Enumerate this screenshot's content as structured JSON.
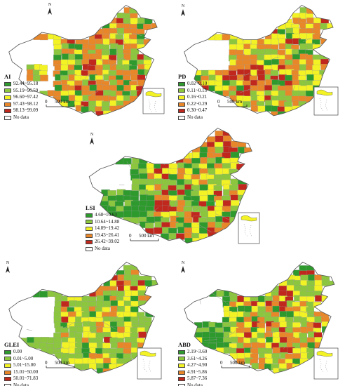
{
  "panels": [
    {
      "id": "AI",
      "title": "AI",
      "legend": [
        {
          "range": "92.44~95.18",
          "color": "#2e9a2e"
        },
        {
          "range": "95.19~96.59",
          "color": "#8cc63f"
        },
        {
          "range": "96.60~97.42",
          "color": "#f2f224"
        },
        {
          "range": "97.43~98.12",
          "color": "#e8872a"
        },
        {
          "range": "98.13~99.09",
          "color": "#c0281e"
        }
      ],
      "no_data_label": "No data",
      "scale": {
        "zero": "0",
        "label": "500 km"
      },
      "north": "N"
    },
    {
      "id": "PD",
      "title": "PD",
      "legend": [
        {
          "range": "0.02~0.10",
          "color": "#2e9a2e"
        },
        {
          "range": "0.11~0.15",
          "color": "#8cc63f"
        },
        {
          "range": "0.16~0.21",
          "color": "#f2f224"
        },
        {
          "range": "0.22~0.29",
          "color": "#e8872a"
        },
        {
          "range": "0.30~0.47",
          "color": "#c0281e"
        }
      ],
      "no_data_label": "No data",
      "scale": {
        "zero": "0",
        "label": "500 km"
      },
      "north": "N"
    },
    {
      "id": "LSI",
      "title": "LSI",
      "legend": [
        {
          "range": "4.68~10.63",
          "color": "#2e9a2e"
        },
        {
          "range": "10.64~14.88",
          "color": "#8cc63f"
        },
        {
          "range": "14.89~19.42",
          "color": "#f2f224"
        },
        {
          "range": "19.43~26.41",
          "color": "#e8872a"
        },
        {
          "range": "26.42~39.02",
          "color": "#c0281e"
        }
      ],
      "no_data_label": "No data",
      "scale": {
        "zero": "0",
        "label": "500 km"
      },
      "north": "N"
    },
    {
      "id": "GLEI",
      "title": "GLEI",
      "legend": [
        {
          "range": "0.00",
          "color": "#2e9a2e"
        },
        {
          "range": "0.01~5.00",
          "color": "#8cc63f"
        },
        {
          "range": "5.01~15.00",
          "color": "#f2f224"
        },
        {
          "range": "15.01~50.00",
          "color": "#e8872a"
        },
        {
          "range": "50.01~71.83",
          "color": "#c0281e"
        }
      ],
      "no_data_label": "No data",
      "scale": {
        "zero": "0",
        "label": "500 km"
      },
      "north": "N"
    },
    {
      "id": "ABD",
      "title": "ABD",
      "legend": [
        {
          "range": "2.19~3.60",
          "color": "#2e9a2e"
        },
        {
          "range": "3.61~4.26",
          "color": "#8cc63f"
        },
        {
          "range": "4.27~4.90",
          "color": "#f2f224"
        },
        {
          "range": "4.91~5.86",
          "color": "#e8872a"
        },
        {
          "range": "5.87~7.36",
          "color": "#c0281e"
        }
      ],
      "no_data_label": "No data",
      "scale": {
        "zero": "0",
        "label": "500 km"
      },
      "north": "N"
    }
  ]
}
